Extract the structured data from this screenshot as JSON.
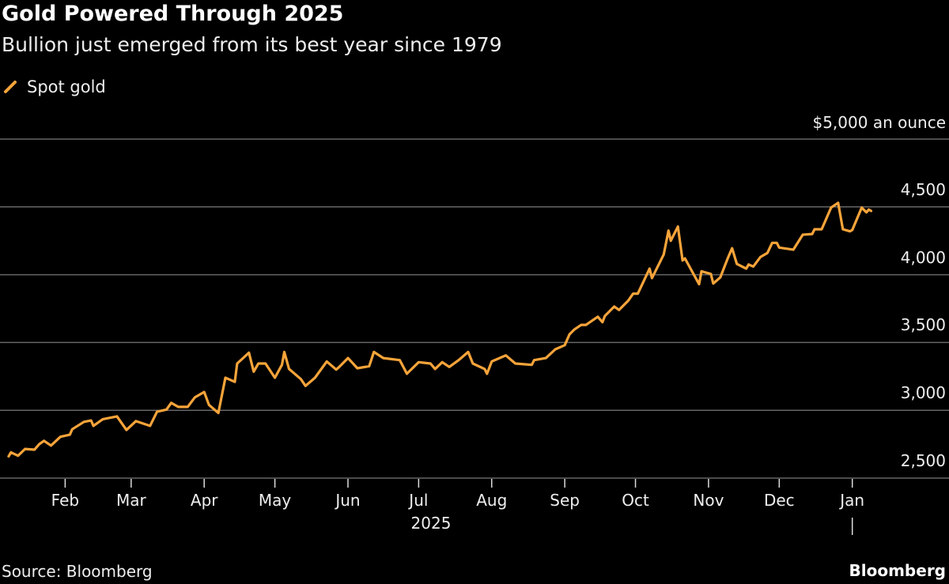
{
  "header": {
    "title": "Gold Powered Through 2025",
    "subtitle": "Bullion just emerged from its best year since 1979"
  },
  "footer": {
    "source": "Source: Bloomberg",
    "brand": "Bloomberg"
  },
  "chart_data": {
    "type": "line",
    "title": "Gold Powered Through 2025",
    "subtitle": "Bullion just emerged from its best year since 1979",
    "ylabel": "$5,000 an ounce",
    "xlabel": "2025",
    "ylim": [
      2500,
      5000
    ],
    "yticks": [
      2500,
      3000,
      3500,
      4000,
      4500,
      5000
    ],
    "ytick_labels": [
      "2,500",
      "3,000",
      "3,500",
      "4,000",
      "4,500",
      "$5,000 an ounce"
    ],
    "xticks": [
      "2025-02-01",
      "2025-03-01",
      "2025-04-01",
      "2025-05-01",
      "2025-06-01",
      "2025-07-01",
      "2025-08-01",
      "2025-09-01",
      "2025-10-01",
      "2025-11-01",
      "2025-12-01",
      "2026-01-01"
    ],
    "xtick_labels": [
      "Feb",
      "Mar",
      "Apr",
      "May",
      "Jun",
      "Jul",
      "Aug",
      "Sep",
      "Oct",
      "Nov",
      "Dec",
      "Jan"
    ],
    "year_label": "2025",
    "grid": true,
    "legend_position": "top-left",
    "colors": {
      "series": "#f7a43a",
      "grid": "#666666",
      "background": "#000000"
    },
    "series": [
      {
        "name": "Spot gold",
        "points": [
          [
            "2025-01-08",
            2660
          ],
          [
            "2025-01-09",
            2690
          ],
          [
            "2025-01-12",
            2665
          ],
          [
            "2025-01-15",
            2715
          ],
          [
            "2025-01-19",
            2710
          ],
          [
            "2025-01-21",
            2750
          ],
          [
            "2025-01-23",
            2775
          ],
          [
            "2025-01-26",
            2740
          ],
          [
            "2025-01-30",
            2805
          ],
          [
            "2025-02-03",
            2820
          ],
          [
            "2025-02-04",
            2860
          ],
          [
            "2025-02-09",
            2915
          ],
          [
            "2025-02-12",
            2925
          ],
          [
            "2025-02-13",
            2885
          ],
          [
            "2025-02-17",
            2935
          ],
          [
            "2025-02-23",
            2955
          ],
          [
            "2025-02-27",
            2855
          ],
          [
            "2025-03-03",
            2920
          ],
          [
            "2025-03-09",
            2885
          ],
          [
            "2025-03-12",
            2990
          ],
          [
            "2025-03-16",
            3005
          ],
          [
            "2025-03-18",
            3055
          ],
          [
            "2025-03-21",
            3025
          ],
          [
            "2025-03-25",
            3025
          ],
          [
            "2025-03-28",
            3095
          ],
          [
            "2025-04-01",
            3135
          ],
          [
            "2025-04-03",
            3040
          ],
          [
            "2025-04-07",
            2980
          ],
          [
            "2025-04-10",
            3240
          ],
          [
            "2025-04-14",
            3210
          ],
          [
            "2025-04-15",
            3345
          ],
          [
            "2025-04-20",
            3425
          ],
          [
            "2025-04-22",
            3285
          ],
          [
            "2025-04-24",
            3345
          ],
          [
            "2025-04-27",
            3345
          ],
          [
            "2025-05-01",
            3240
          ],
          [
            "2025-05-04",
            3335
          ],
          [
            "2025-05-05",
            3430
          ],
          [
            "2025-05-07",
            3305
          ],
          [
            "2025-05-12",
            3230
          ],
          [
            "2025-05-14",
            3180
          ],
          [
            "2025-05-18",
            3240
          ],
          [
            "2025-05-23",
            3360
          ],
          [
            "2025-05-27",
            3300
          ],
          [
            "2025-05-28",
            3315
          ],
          [
            "2025-06-01",
            3385
          ],
          [
            "2025-06-05",
            3310
          ],
          [
            "2025-06-10",
            3325
          ],
          [
            "2025-06-12",
            3430
          ],
          [
            "2025-06-16",
            3385
          ],
          [
            "2025-06-23",
            3370
          ],
          [
            "2025-06-26",
            3270
          ],
          [
            "2025-07-01",
            3355
          ],
          [
            "2025-07-06",
            3345
          ],
          [
            "2025-07-08",
            3305
          ],
          [
            "2025-07-11",
            3355
          ],
          [
            "2025-07-14",
            3320
          ],
          [
            "2025-07-18",
            3370
          ],
          [
            "2025-07-22",
            3430
          ],
          [
            "2025-07-24",
            3345
          ],
          [
            "2025-07-29",
            3305
          ],
          [
            "2025-07-30",
            3270
          ],
          [
            "2025-08-01",
            3360
          ],
          [
            "2025-08-07",
            3405
          ],
          [
            "2025-08-11",
            3345
          ],
          [
            "2025-08-18",
            3335
          ],
          [
            "2025-08-19",
            3370
          ],
          [
            "2025-08-24",
            3385
          ],
          [
            "2025-08-28",
            3450
          ],
          [
            "2025-09-01",
            3480
          ],
          [
            "2025-09-03",
            3560
          ],
          [
            "2025-09-05",
            3595
          ],
          [
            "2025-09-08",
            3630
          ],
          [
            "2025-09-10",
            3630
          ],
          [
            "2025-09-15",
            3690
          ],
          [
            "2025-09-17",
            3650
          ],
          [
            "2025-09-18",
            3695
          ],
          [
            "2025-09-22",
            3765
          ],
          [
            "2025-09-24",
            3740
          ],
          [
            "2025-09-28",
            3810
          ],
          [
            "2025-09-30",
            3860
          ],
          [
            "2025-10-02",
            3860
          ],
          [
            "2025-10-07",
            4045
          ],
          [
            "2025-10-08",
            3975
          ],
          [
            "2025-10-13",
            4150
          ],
          [
            "2025-10-15",
            4325
          ],
          [
            "2025-10-16",
            4250
          ],
          [
            "2025-10-19",
            4355
          ],
          [
            "2025-10-21",
            4105
          ],
          [
            "2025-10-22",
            4120
          ],
          [
            "2025-10-28",
            3930
          ],
          [
            "2025-10-29",
            4025
          ],
          [
            "2025-11-02",
            4005
          ],
          [
            "2025-11-03",
            3935
          ],
          [
            "2025-11-06",
            3980
          ],
          [
            "2025-11-09",
            4115
          ],
          [
            "2025-11-11",
            4195
          ],
          [
            "2025-11-13",
            4080
          ],
          [
            "2025-11-17",
            4045
          ],
          [
            "2025-11-18",
            4075
          ],
          [
            "2025-11-20",
            4060
          ],
          [
            "2025-11-23",
            4130
          ],
          [
            "2025-11-26",
            4160
          ],
          [
            "2025-11-28",
            4235
          ],
          [
            "2025-11-30",
            4235
          ],
          [
            "2025-12-01",
            4200
          ],
          [
            "2025-12-07",
            4185
          ],
          [
            "2025-12-11",
            4295
          ],
          [
            "2025-12-15",
            4300
          ],
          [
            "2025-12-16",
            4335
          ],
          [
            "2025-12-19",
            4335
          ],
          [
            "2025-12-23",
            4495
          ],
          [
            "2025-12-26",
            4530
          ],
          [
            "2025-12-28",
            4335
          ],
          [
            "2025-12-31",
            4320
          ],
          [
            "2026-01-01",
            4330
          ],
          [
            "2026-01-05",
            4495
          ],
          [
            "2026-01-07",
            4460
          ],
          [
            "2026-01-08",
            4480
          ],
          [
            "2026-01-09",
            4470
          ]
        ]
      }
    ]
  }
}
